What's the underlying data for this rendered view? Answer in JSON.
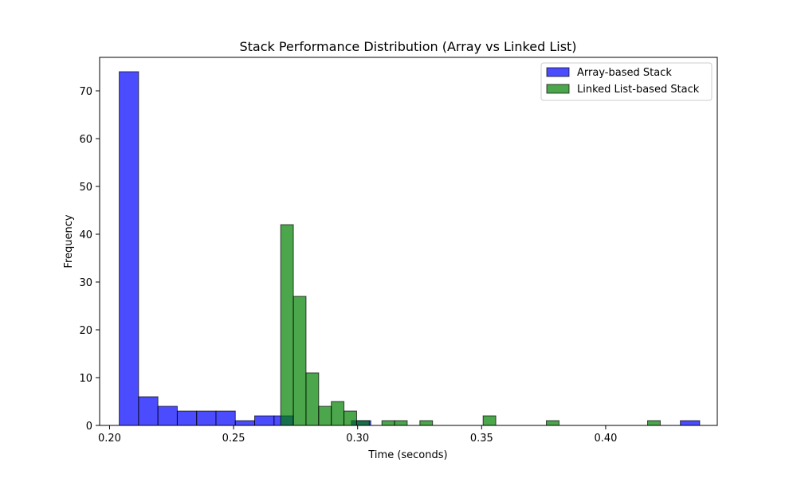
{
  "chart_data": {
    "type": "histogram",
    "title": "Stack Performance Distribution (Array vs Linked List)",
    "xlabel": "Time (seconds)",
    "ylabel": "Frequency",
    "xlim": [
      0.196,
      0.445
    ],
    "ylim": [
      0,
      77
    ],
    "xticks": [
      0.2,
      0.25,
      0.3,
      0.35,
      0.4
    ],
    "xtick_labels": [
      "0.20",
      "0.25",
      "0.30",
      "0.35",
      "0.40"
    ],
    "yticks": [
      0,
      10,
      20,
      30,
      40,
      50,
      60,
      70
    ],
    "ytick_labels": [
      "0",
      "10",
      "20",
      "30",
      "40",
      "50",
      "60",
      "70"
    ],
    "grid": false,
    "legend_position": "top-right",
    "series": [
      {
        "name": "Array-based Stack",
        "color": "#0000ff",
        "opacity": 0.7,
        "bins": [
          {
            "start": 0.2039,
            "end": 0.2117,
            "count": 74
          },
          {
            "start": 0.2117,
            "end": 0.2195,
            "count": 6
          },
          {
            "start": 0.2195,
            "end": 0.2273,
            "count": 4
          },
          {
            "start": 0.2273,
            "end": 0.2351,
            "count": 3
          },
          {
            "start": 0.2351,
            "end": 0.2429,
            "count": 3
          },
          {
            "start": 0.2429,
            "end": 0.2507,
            "count": 3
          },
          {
            "start": 0.2507,
            "end": 0.2585,
            "count": 1
          },
          {
            "start": 0.2585,
            "end": 0.2663,
            "count": 2
          },
          {
            "start": 0.2663,
            "end": 0.2741,
            "count": 2
          },
          {
            "start": 0.2975,
            "end": 0.3053,
            "count": 1
          },
          {
            "start": 0.4301,
            "end": 0.4379,
            "count": 1
          }
        ]
      },
      {
        "name": "Linked List-based Stack",
        "color": "#008000",
        "opacity": 0.7,
        "bins": [
          {
            "start": 0.269,
            "end": 0.2741,
            "count": 42
          },
          {
            "start": 0.2741,
            "end": 0.2792,
            "count": 27
          },
          {
            "start": 0.2792,
            "end": 0.2843,
            "count": 11
          },
          {
            "start": 0.2843,
            "end": 0.2894,
            "count": 4
          },
          {
            "start": 0.2894,
            "end": 0.2945,
            "count": 5
          },
          {
            "start": 0.2945,
            "end": 0.2996,
            "count": 3
          },
          {
            "start": 0.2996,
            "end": 0.3047,
            "count": 1
          },
          {
            "start": 0.3098,
            "end": 0.3149,
            "count": 1
          },
          {
            "start": 0.3149,
            "end": 0.32,
            "count": 1
          },
          {
            "start": 0.3251,
            "end": 0.3302,
            "count": 1
          },
          {
            "start": 0.3506,
            "end": 0.3557,
            "count": 2
          },
          {
            "start": 0.3761,
            "end": 0.3812,
            "count": 1
          },
          {
            "start": 0.4169,
            "end": 0.422,
            "count": 1
          }
        ]
      }
    ]
  }
}
